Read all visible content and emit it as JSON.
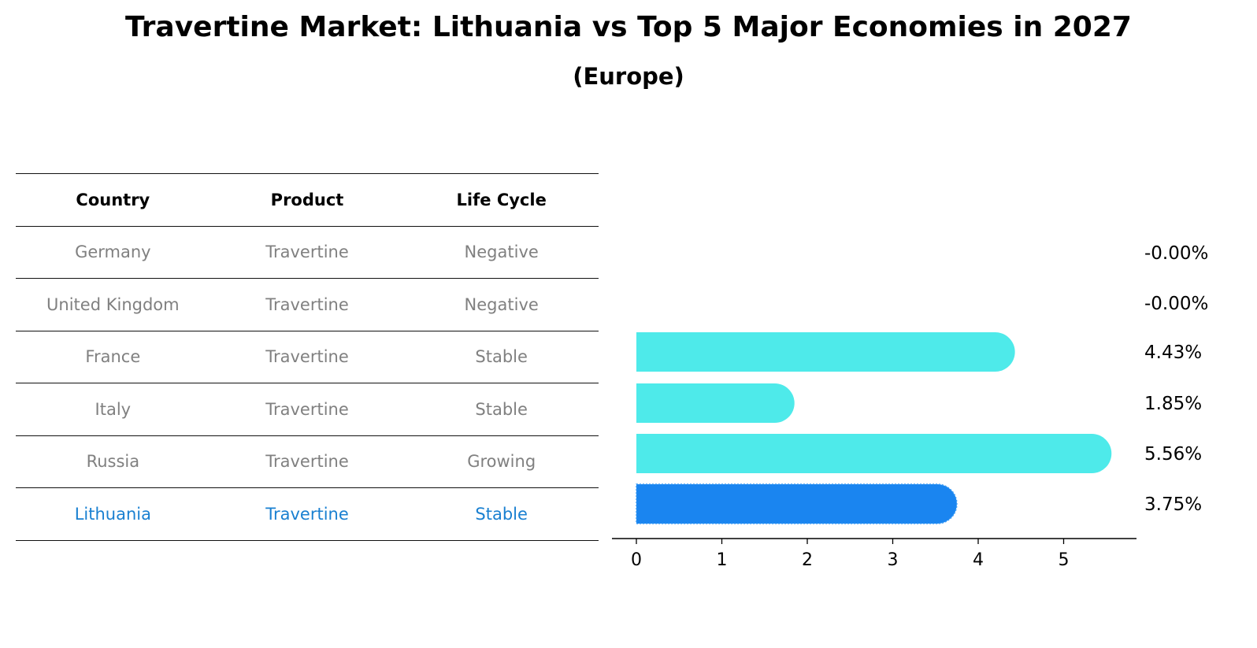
{
  "title": "Travertine Market: Lithuania vs Top 5 Major Economies in 2027",
  "subtitle": "(Europe)",
  "table": {
    "headers": [
      "Country",
      "Product",
      "Life Cycle"
    ],
    "rows": [
      [
        "Germany",
        "Travertine",
        "Negative"
      ],
      [
        "United Kingdom",
        "Travertine",
        "Negative"
      ],
      [
        "France",
        "Travertine",
        "Stable"
      ],
      [
        "Italy",
        "Travertine",
        "Stable"
      ],
      [
        "Russia",
        "Travertine",
        "Growing"
      ],
      [
        "Lithuania",
        "Travertine",
        "Stable"
      ]
    ],
    "highlight_row": 5,
    "colors": {
      "normal": "#808080",
      "highlight": "#1a80d1",
      "header": "#000000"
    }
  },
  "chart_data": {
    "type": "bar",
    "orientation": "horizontal",
    "categories": [
      "Germany",
      "United Kingdom",
      "France",
      "Italy",
      "Russia",
      "Lithuania"
    ],
    "values": [
      -0.0,
      -0.0,
      4.43,
      1.85,
      5.56,
      3.75
    ],
    "labels": [
      "-0.00%",
      "-0.00%",
      "4.43%",
      "1.85%",
      "5.56%",
      "3.75%"
    ],
    "xticks": [
      "0",
      "1",
      "2",
      "3",
      "4",
      "5"
    ],
    "xlim": [
      -0.28,
      5.85
    ],
    "colors": {
      "default": "#4eeaea",
      "highlight": "#1a85f0"
    },
    "highlight_index": 5,
    "grid": false
  }
}
